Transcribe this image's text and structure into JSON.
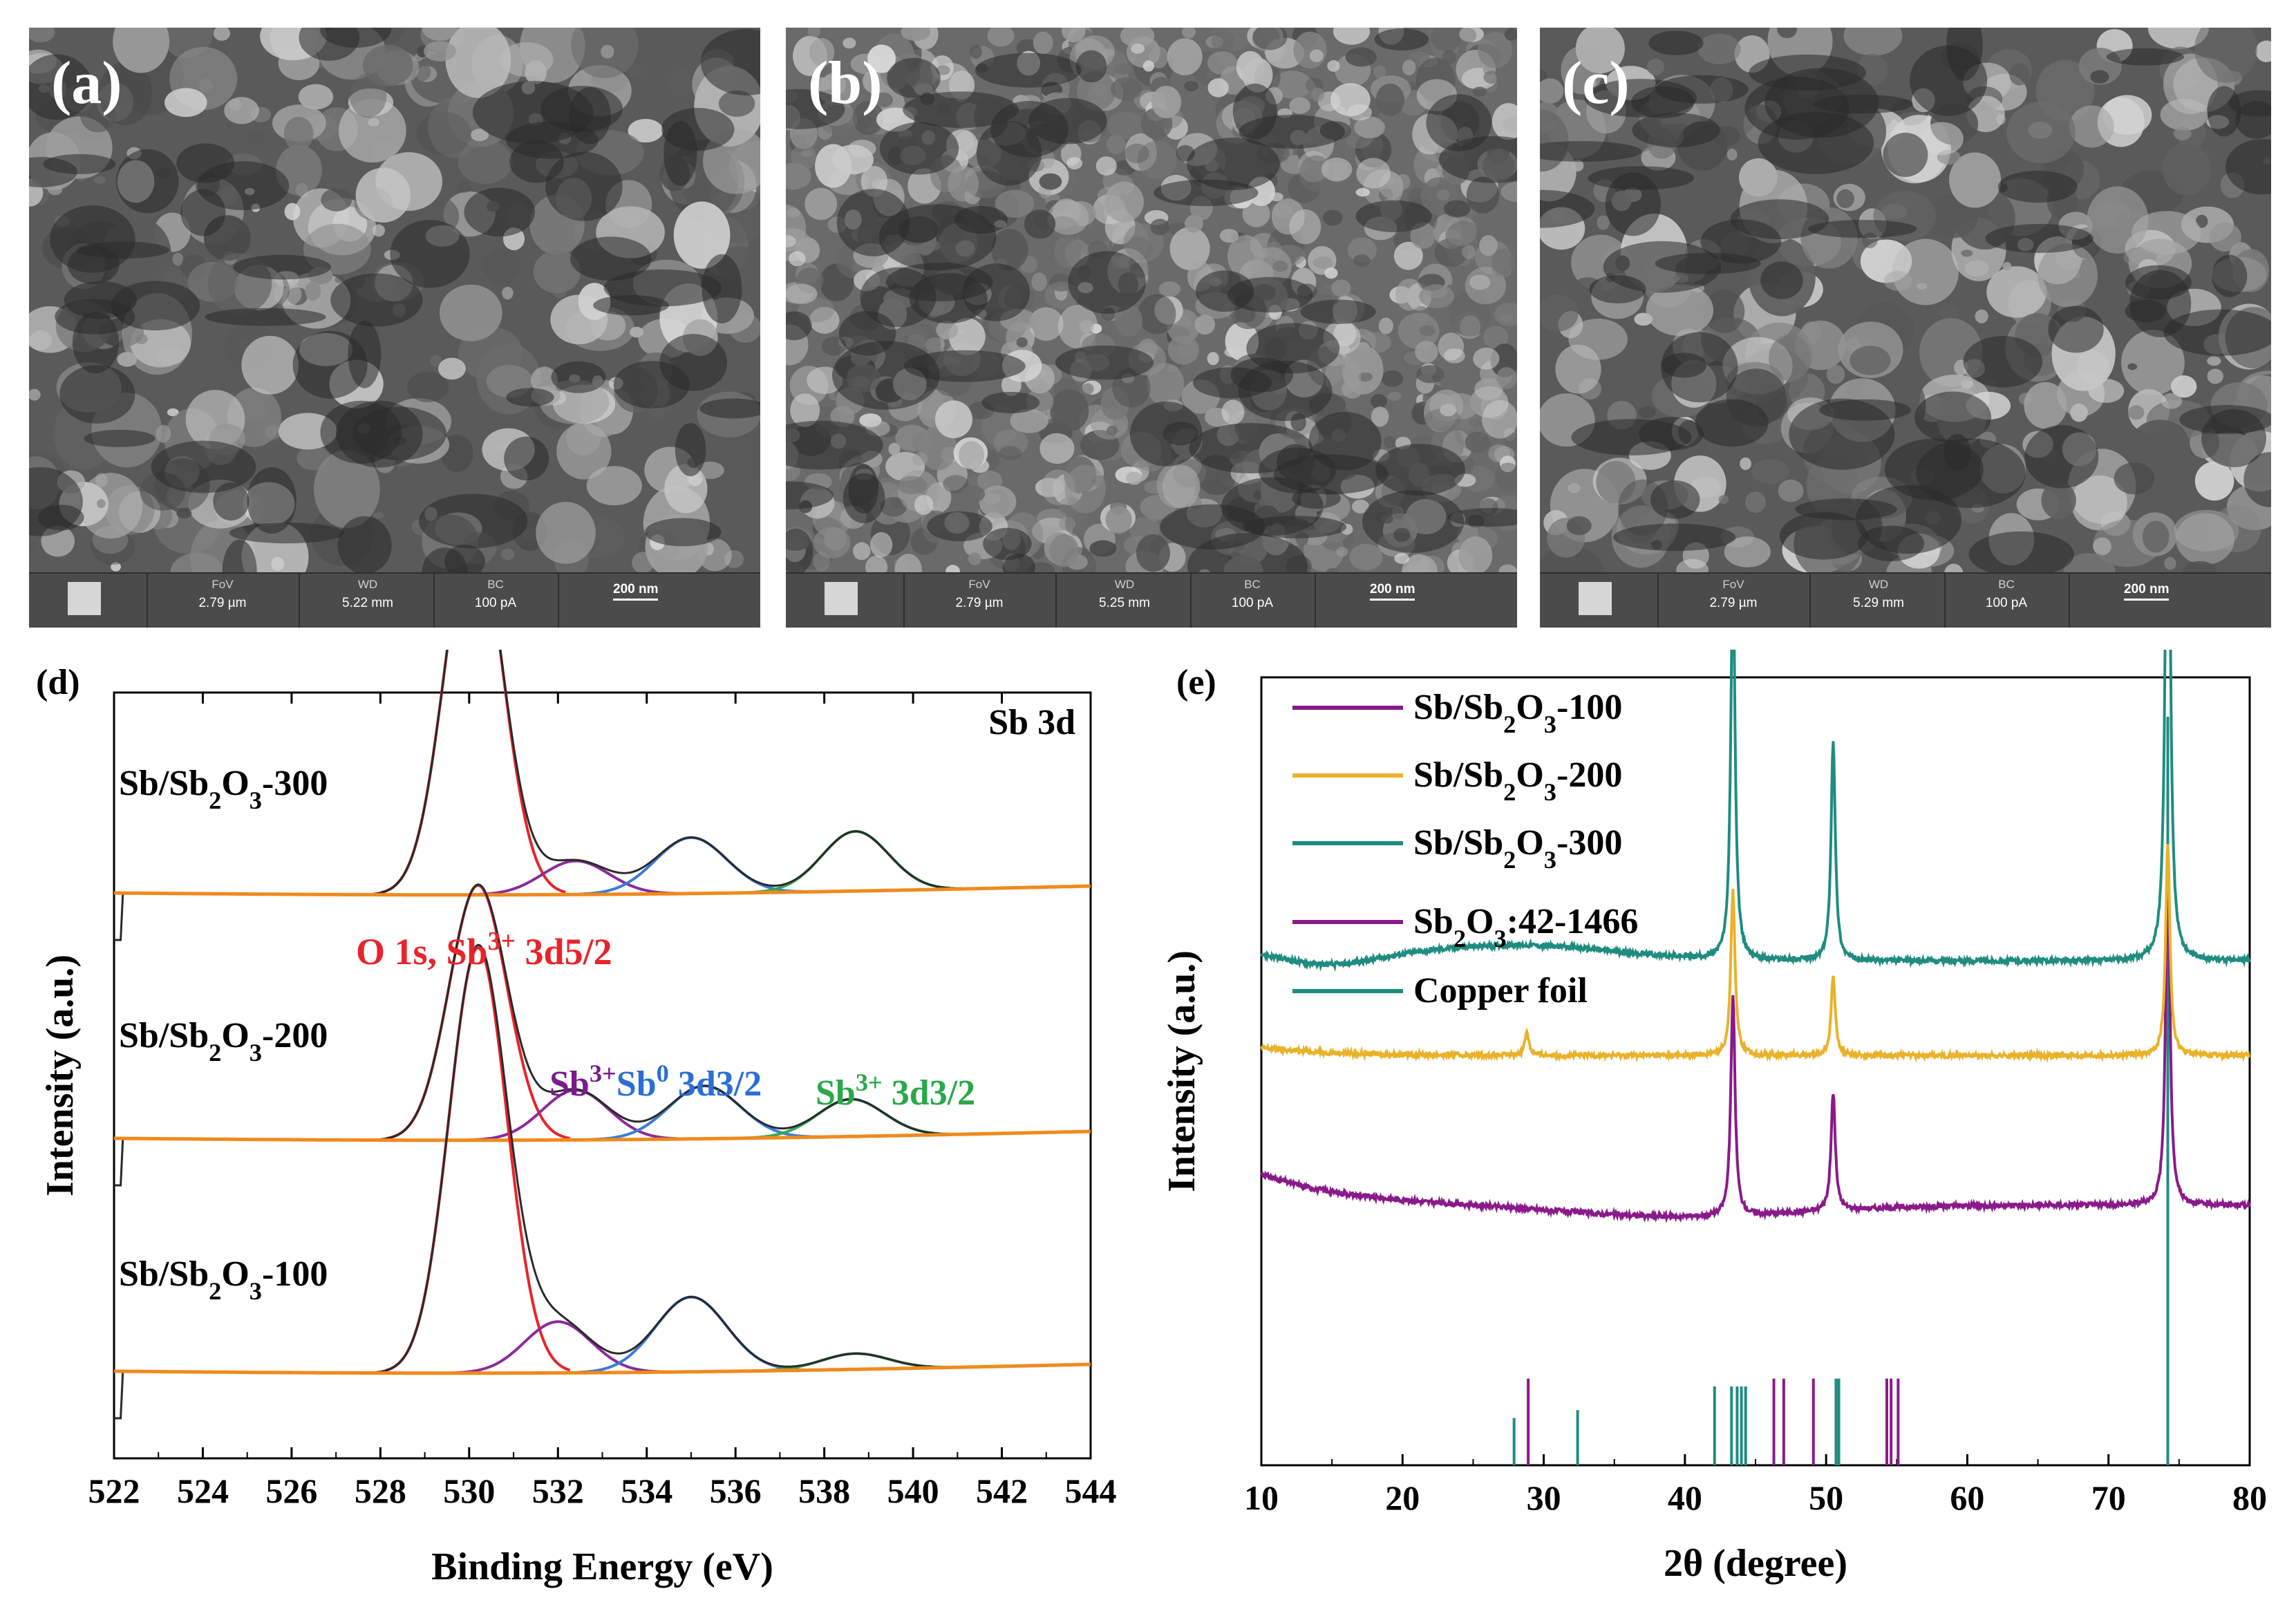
{
  "sem_panels": [
    {
      "label": "(a)",
      "fov_key": "FoV",
      "fov": "2.79 µm",
      "wd_key": "WD",
      "wd": "5.22 mm",
      "bc_key": "BC",
      "bc": "100 pA",
      "scale": "200 nm"
    },
    {
      "label": "(b)",
      "fov_key": "FoV",
      "fov": "2.79 µm",
      "wd_key": "WD",
      "wd": "5.25 mm",
      "bc_key": "BC",
      "bc": "100 pA",
      "scale": "200 nm"
    },
    {
      "label": "(c)",
      "fov_key": "FoV",
      "fov": "2.79 µm",
      "wd_key": "WD",
      "wd": "5.29 mm",
      "bc_key": "BC",
      "bc": "100 pA",
      "scale": "200 nm"
    }
  ],
  "chart_data": [
    {
      "panel": "(d)",
      "type": "line",
      "title": "Sb 3d",
      "xlabel": "Binding Energy (eV)",
      "ylabel": "Intensity (a.u.)",
      "xlim": [
        522,
        544
      ],
      "xticks": [
        522,
        524,
        526,
        528,
        530,
        532,
        534,
        536,
        538,
        540,
        542,
        544
      ],
      "samples": [
        {
          "name": "Sb/Sb2O3-300",
          "prefix": "Sb/Sb",
          "sub1": "2",
          "mid": "O",
          "sub2": "3",
          "suffix": "-300",
          "peaks": [
            {
              "center": 530.1,
              "height": 1.0
            },
            {
              "center": 532.4,
              "height": 0.09
            },
            {
              "center": 535.0,
              "height": 0.15
            },
            {
              "center": 538.7,
              "height": 0.16
            }
          ]
        },
        {
          "name": "Sb/Sb2O3-200",
          "prefix": "Sb/Sb",
          "sub1": "2",
          "mid": "O",
          "sub2": "3",
          "suffix": "-200",
          "peaks": [
            {
              "center": 530.2,
              "height": 0.82
            },
            {
              "center": 532.4,
              "height": 0.16
            },
            {
              "center": 535.3,
              "height": 0.17
            },
            {
              "center": 538.6,
              "height": 0.12
            }
          ]
        },
        {
          "name": "Sb/Sb2O3-100",
          "prefix": "Sb/Sb",
          "sub1": "2",
          "mid": "O",
          "sub2": "3",
          "suffix": "-100",
          "peaks": [
            {
              "center": 530.2,
              "height": 1.08
            },
            {
              "center": 532.0,
              "height": 0.13
            },
            {
              "center": 535.0,
              "height": 0.19
            },
            {
              "center": 538.7,
              "height": 0.04
            }
          ]
        }
      ],
      "annotations": {
        "o1s": {
          "text1": "O 1s, Sb",
          "sup": "3+",
          "text2": " 3d5/2",
          "color": "#e8242a"
        },
        "sb3plus": {
          "text": "Sb",
          "sup": "3+",
          "color": "#7b1a8c"
        },
        "sb0": {
          "text": "Sb",
          "sup": "0",
          "text2": " 3d3/2",
          "color": "#2b6fd6"
        },
        "sb3plus_32": {
          "text": "Sb",
          "sup": "3+",
          "text2": " 3d3/2",
          "color": "#2aa84a"
        }
      },
      "colors": {
        "raw": "#333333",
        "envelope": "#2a2a2a",
        "o1s_fit": "#e8242a",
        "sb3_fit": "#8a2b9a",
        "sb0_fit": "#3b7bd8",
        "sb3_32_fit": "#32a852",
        "background": "#f08a1c"
      }
    },
    {
      "panel": "(e)",
      "type": "line",
      "xlabel": "2θ (degree)",
      "ylabel": "Intensity (a.u.)",
      "xlim": [
        10,
        80
      ],
      "xticks": [
        10,
        20,
        30,
        40,
        50,
        60,
        70,
        80
      ],
      "series": [
        {
          "name": "Sb/Sb2O3-100",
          "legend_prefix": "Sb/Sb",
          "sub1": "2",
          "mid": "O",
          "sub2": "3",
          "suffix": "-100",
          "color": "#8a1a8a",
          "baseline": 0.33,
          "peaks": [
            {
              "x": 43.4,
              "h": 0.28
            },
            {
              "x": 50.5,
              "h": 0.15
            },
            {
              "x": 74.2,
              "h": 0.45
            }
          ]
        },
        {
          "name": "Sb/Sb2O3-200",
          "legend_prefix": "Sb/Sb",
          "sub1": "2",
          "mid": "O",
          "sub2": "3",
          "suffix": "-200",
          "color": "#e9b22a",
          "baseline": 0.52,
          "peaks": [
            {
              "x": 28.8,
              "h": 0.03
            },
            {
              "x": 43.4,
              "h": 0.21
            },
            {
              "x": 50.5,
              "h": 0.1
            },
            {
              "x": 74.2,
              "h": 0.27
            }
          ]
        },
        {
          "name": "Sb/Sb2O3-300",
          "legend_prefix": "Sb/Sb",
          "sub1": "2",
          "mid": "O",
          "sub2": "3",
          "suffix": "-300",
          "color": "#1f8c80",
          "baseline": 0.64,
          "peaks": [
            {
              "x": 43.4,
              "h": 0.5
            },
            {
              "x": 50.5,
              "h": 0.28
            },
            {
              "x": 74.2,
              "h": 0.86
            }
          ]
        }
      ],
      "reference_legend": [
        {
          "name": "Sb2O3:42-1466",
          "prefix": "Sb",
          "sub1": "2",
          "mid": "O",
          "sub2": "3",
          "suffix": ":42-1466",
          "color": "#8a1a8a"
        },
        {
          "name": "Copper foil",
          "prefix": "Copper foil",
          "color": "#1f8c80"
        }
      ],
      "reference_sticks": {
        "sb2o3": [
          28.9,
          46.3,
          47.0,
          49.1,
          54.3,
          54.6,
          55.1
        ],
        "copper": [
          27.9,
          32.4,
          42.1,
          43.3,
          43.7,
          44.0,
          44.3,
          50.7,
          50.9,
          74.2
        ]
      }
    }
  ]
}
